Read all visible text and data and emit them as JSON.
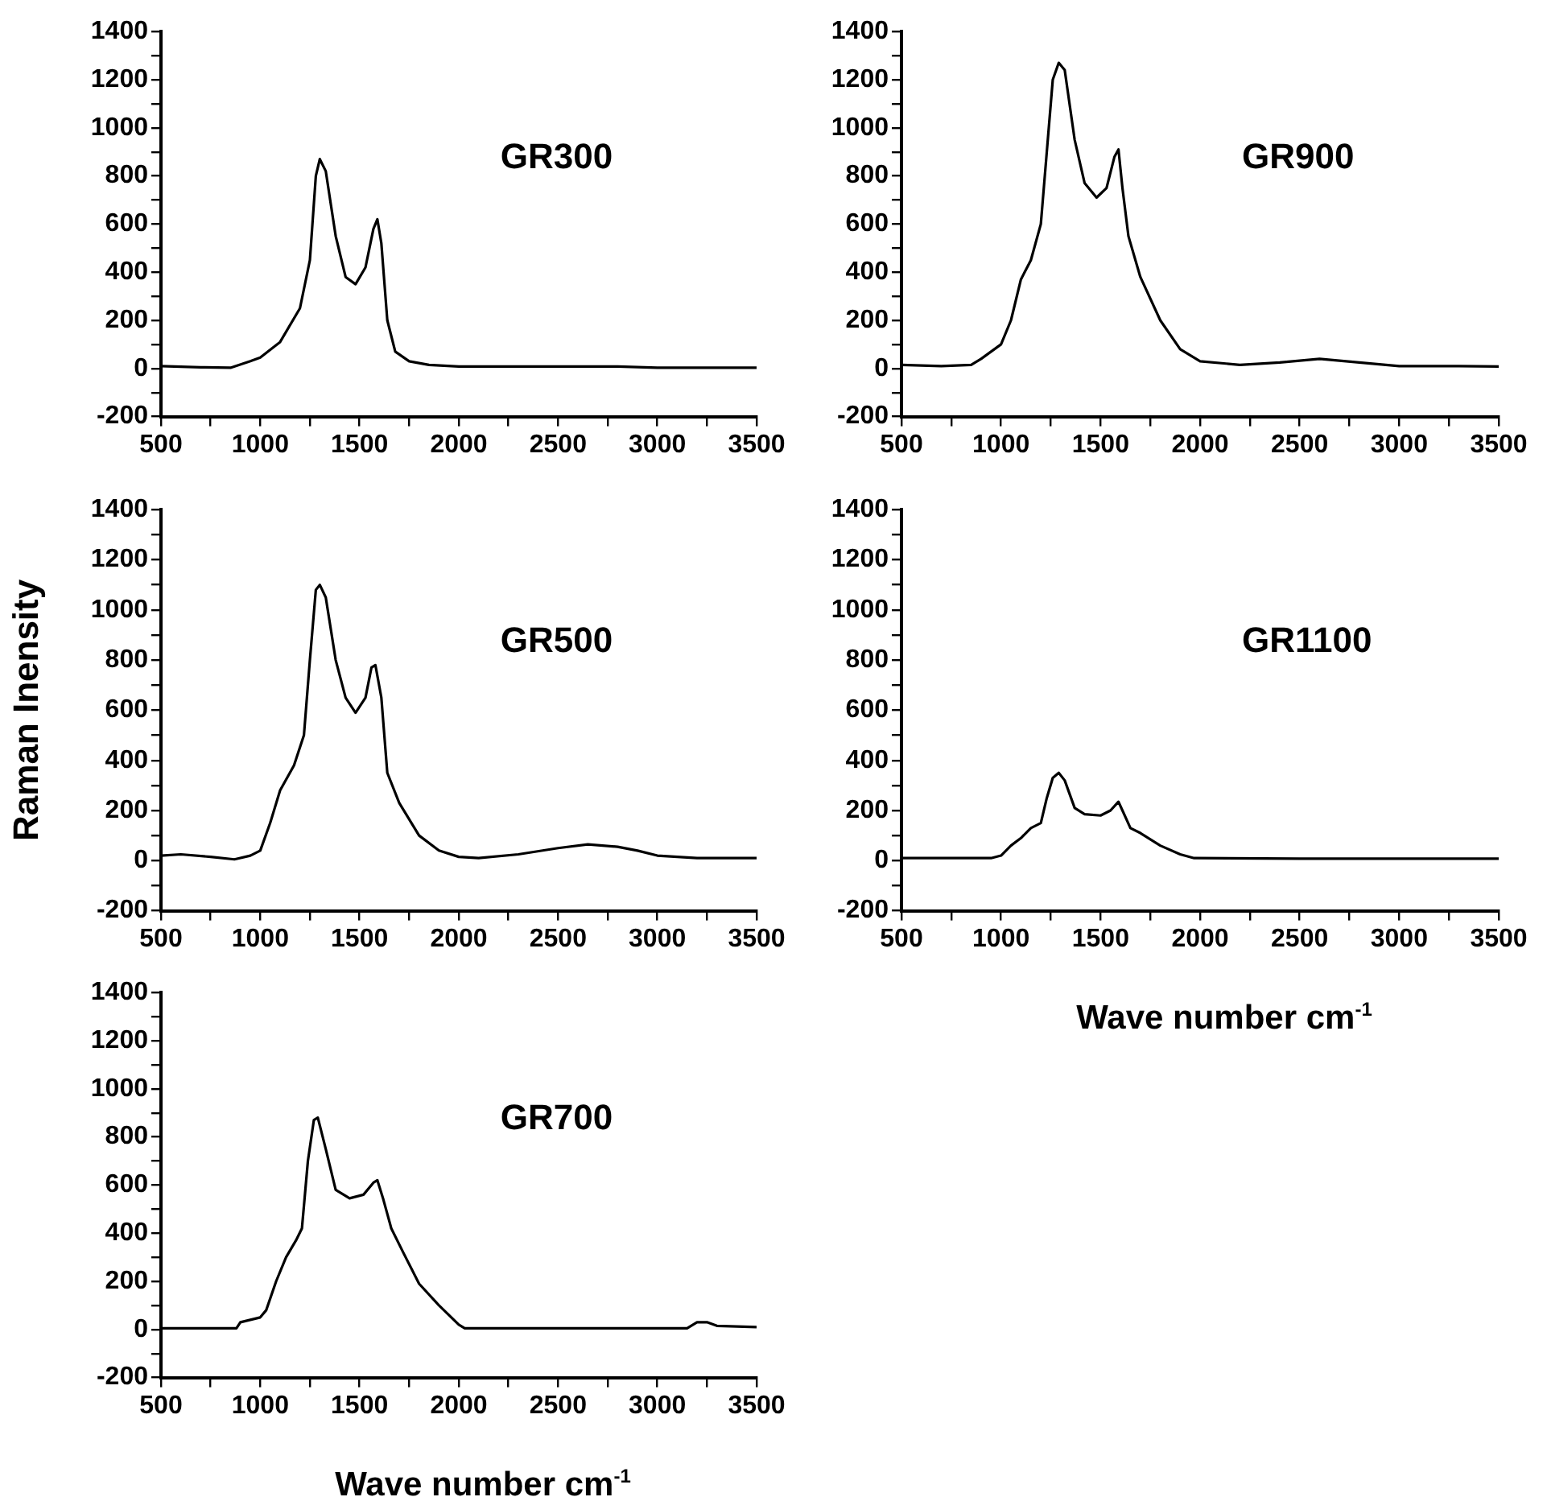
{
  "chart_data": [
    {
      "type": "line",
      "title": "GR300",
      "xlim": [
        500,
        3500
      ],
      "ylim": [
        -200,
        1400
      ],
      "xticks": [
        500,
        {
          "value": 750,
          "label": null
        },
        1000,
        {
          "value": 1250,
          "label": null
        },
        1500,
        {
          "value": 1750,
          "label": null
        },
        2000,
        {
          "value": 2250,
          "label": null
        },
        2500,
        {
          "value": 2750,
          "label": null
        },
        3000,
        {
          "value": 3250,
          "label": null
        },
        3500
      ],
      "yticks": [
        -200,
        {
          "value": -100,
          "label": null
        },
        0,
        {
          "value": 100,
          "label": null
        },
        200,
        {
          "value": 300,
          "label": null
        },
        400,
        {
          "value": 500,
          "label": null
        },
        600,
        {
          "value": 700,
          "label": null
        },
        800,
        {
          "value": 900,
          "label": null
        },
        1000,
        {
          "value": 1100,
          "label": null
        },
        1200,
        {
          "value": 1300,
          "label": null
        },
        1400
      ],
      "series": [
        {
          "color": "#000000",
          "x": [
            500,
            700,
            850,
            950,
            1000,
            1100,
            1200,
            1250,
            1280,
            1300,
            1330,
            1380,
            1430,
            1480,
            1530,
            1570,
            1590,
            1610,
            1640,
            1680,
            1750,
            1850,
            2000,
            2500,
            2800,
            3000,
            3500
          ],
          "values": [
            10,
            5,
            3,
            30,
            45,
            110,
            250,
            450,
            800,
            870,
            820,
            550,
            380,
            350,
            420,
            580,
            620,
            520,
            200,
            70,
            30,
            15,
            8,
            8,
            8,
            3,
            3
          ]
        }
      ]
    },
    {
      "type": "line",
      "title": "GR900",
      "xlim": [
        500,
        3500
      ],
      "ylim": [
        -200,
        1400
      ],
      "xticks": [
        500,
        {
          "value": 750,
          "label": null
        },
        1000,
        {
          "value": 1250,
          "label": null
        },
        1500,
        {
          "value": 1750,
          "label": null
        },
        2000,
        {
          "value": 2250,
          "label": null
        },
        2500,
        {
          "value": 2750,
          "label": null
        },
        3000,
        {
          "value": 3250,
          "label": null
        },
        3500
      ],
      "yticks": [
        -200,
        {
          "value": -100,
          "label": null
        },
        0,
        {
          "value": 100,
          "label": null
        },
        200,
        {
          "value": 300,
          "label": null
        },
        400,
        {
          "value": 500,
          "label": null
        },
        600,
        {
          "value": 700,
          "label": null
        },
        800,
        {
          "value": 900,
          "label": null
        },
        1000,
        {
          "value": 1100,
          "label": null
        },
        1200,
        {
          "value": 1300,
          "label": null
        },
        1400
      ],
      "series": [
        {
          "color": "#000000",
          "x": [
            500,
            700,
            850,
            900,
            1000,
            1050,
            1100,
            1150,
            1200,
            1230,
            1260,
            1290,
            1320,
            1370,
            1420,
            1480,
            1530,
            1570,
            1590,
            1610,
            1640,
            1700,
            1800,
            1900,
            2000,
            2200,
            2400,
            2600,
            2800,
            3000,
            3300,
            3500
          ],
          "values": [
            15,
            10,
            15,
            40,
            100,
            200,
            370,
            450,
            600,
            900,
            1200,
            1270,
            1240,
            950,
            770,
            710,
            750,
            880,
            910,
            750,
            550,
            380,
            200,
            80,
            30,
            15,
            25,
            40,
            25,
            10,
            10,
            8
          ]
        }
      ]
    },
    {
      "type": "line",
      "title": "GR500",
      "ylabel": "Raman Inensity",
      "xlim": [
        500,
        3500
      ],
      "ylim": [
        -200,
        1400
      ],
      "xticks": [
        500,
        {
          "value": 750,
          "label": null
        },
        1000,
        {
          "value": 1250,
          "label": null
        },
        1500,
        {
          "value": 1750,
          "label": null
        },
        2000,
        {
          "value": 2250,
          "label": null
        },
        2500,
        {
          "value": 2750,
          "label": null
        },
        3000,
        {
          "value": 3250,
          "label": null
        },
        3500
      ],
      "yticks": [
        -200,
        {
          "value": -100,
          "label": null
        },
        0,
        {
          "value": 100,
          "label": null
        },
        200,
        {
          "value": 300,
          "label": null
        },
        400,
        {
          "value": 500,
          "label": null
        },
        600,
        {
          "value": 700,
          "label": null
        },
        800,
        {
          "value": 900,
          "label": null
        },
        1000,
        {
          "value": 1100,
          "label": null
        },
        1200,
        {
          "value": 1300,
          "label": null
        },
        1400
      ],
      "series": [
        {
          "color": "#000000",
          "x": [
            500,
            600,
            750,
            870,
            950,
            1000,
            1050,
            1100,
            1170,
            1220,
            1250,
            1280,
            1300,
            1330,
            1380,
            1430,
            1480,
            1530,
            1560,
            1580,
            1610,
            1640,
            1700,
            1800,
            1900,
            2000,
            2100,
            2300,
            2500,
            2650,
            2800,
            2900,
            3000,
            3200,
            3500
          ],
          "values": [
            20,
            25,
            15,
            5,
            20,
            40,
            150,
            280,
            380,
            500,
            800,
            1080,
            1100,
            1050,
            800,
            650,
            590,
            650,
            770,
            780,
            650,
            350,
            230,
            100,
            40,
            15,
            10,
            25,
            50,
            65,
            55,
            40,
            20,
            10,
            10
          ]
        }
      ]
    },
    {
      "type": "line",
      "title": "GR1100",
      "xlabel": "Wave number cm$^{-1}$",
      "xlim": [
        500,
        3500
      ],
      "ylim": [
        -200,
        1400
      ],
      "xticks": [
        500,
        {
          "value": 750,
          "label": null
        },
        1000,
        {
          "value": 1250,
          "label": null
        },
        1500,
        {
          "value": 1750,
          "label": null
        },
        2000,
        {
          "value": 2250,
          "label": null
        },
        2500,
        {
          "value": 2750,
          "label": null
        },
        3000,
        {
          "value": 3250,
          "label": null
        },
        3500
      ],
      "yticks": [
        -200,
        {
          "value": -100,
          "label": null
        },
        0,
        {
          "value": 100,
          "label": null
        },
        200,
        {
          "value": 300,
          "label": null
        },
        400,
        {
          "value": 500,
          "label": null
        },
        600,
        {
          "value": 700,
          "label": null
        },
        800,
        {
          "value": 900,
          "label": null
        },
        1000,
        {
          "value": 1100,
          "label": null
        },
        1200,
        {
          "value": 1300,
          "label": null
        },
        1400
      ],
      "series": [
        {
          "color": "#000000",
          "x": [
            500,
            950,
            1000,
            1050,
            1100,
            1150,
            1200,
            1230,
            1260,
            1290,
            1320,
            1370,
            1420,
            1500,
            1550,
            1590,
            1610,
            1650,
            1700,
            1800,
            1900,
            1970,
            2500,
            3500
          ],
          "values": [
            10,
            10,
            20,
            60,
            90,
            130,
            150,
            250,
            330,
            350,
            320,
            210,
            185,
            180,
            200,
            235,
            200,
            130,
            110,
            60,
            25,
            10,
            8,
            8
          ]
        }
      ]
    },
    {
      "type": "line",
      "title": "GR700",
      "xlabel": "Wave number cm$^{-1}$",
      "xlim": [
        500,
        3500
      ],
      "ylim": [
        -200,
        1400
      ],
      "xticks": [
        500,
        {
          "value": 750,
          "label": null
        },
        1000,
        {
          "value": 1250,
          "label": null
        },
        1500,
        {
          "value": 1750,
          "label": null
        },
        2000,
        {
          "value": 2250,
          "label": null
        },
        2500,
        {
          "value": 2750,
          "label": null
        },
        3000,
        {
          "value": 3250,
          "label": null
        },
        3500
      ],
      "yticks": [
        -200,
        {
          "value": -100,
          "label": null
        },
        0,
        {
          "value": 100,
          "label": null
        },
        200,
        {
          "value": 300,
          "label": null
        },
        400,
        {
          "value": 500,
          "label": null
        },
        600,
        {
          "value": 700,
          "label": null
        },
        800,
        {
          "value": 900,
          "label": null
        },
        1000,
        {
          "value": 1100,
          "label": null
        },
        1200,
        {
          "value": 1300,
          "label": null
        },
        1400
      ],
      "series": [
        {
          "color": "#000000",
          "x": [
            500,
            880,
            900,
            1000,
            1030,
            1080,
            1130,
            1180,
            1210,
            1240,
            1270,
            1290,
            1330,
            1380,
            1450,
            1520,
            1570,
            1590,
            1620,
            1660,
            1720,
            1800,
            1900,
            2000,
            2030,
            2500,
            3150,
            3200,
            3250,
            3300,
            3500
          ],
          "values": [
            5,
            5,
            30,
            50,
            80,
            200,
            300,
            370,
            420,
            700,
            870,
            880,
            750,
            580,
            545,
            560,
            610,
            620,
            540,
            420,
            320,
            190,
            100,
            20,
            5,
            5,
            5,
            30,
            30,
            15,
            10
          ]
        }
      ]
    }
  ]
}
